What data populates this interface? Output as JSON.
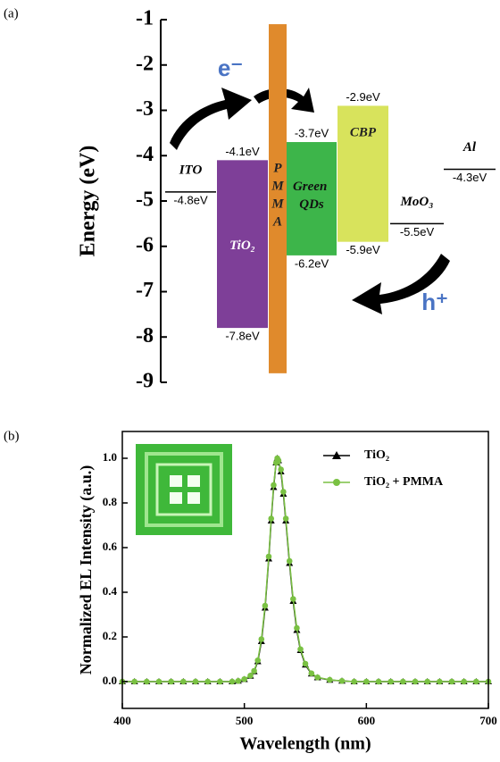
{
  "chart_data": [
    {
      "type": "energy-levels",
      "panel": "(a)",
      "y_label": "Energy (eV)",
      "ylim": [
        -9,
        -1
      ],
      "yticks": [
        -1,
        -2,
        -3,
        -4,
        -5,
        -6,
        -7,
        -8,
        -9
      ],
      "levels": [
        {
          "name": "ITO",
          "value": -4.8,
          "value_label": "-4.8eV"
        },
        {
          "name": "MoO₃",
          "value": -5.5,
          "value_label": "-5.5eV"
        },
        {
          "name": "Al",
          "value": -4.3,
          "value_label": "-4.3eV"
        }
      ],
      "bands": [
        {
          "name": "TiO₂",
          "top": -4.1,
          "bottom": -7.8,
          "top_label": "-4.1eV",
          "bottom_label": "-7.8eV",
          "color": "#7e3f98"
        },
        {
          "name": "PMMA",
          "top": -1.1,
          "bottom": -8.8,
          "color": "#e08a2c"
        },
        {
          "name": "Green QDs",
          "top": -3.7,
          "bottom": -6.2,
          "top_label": "-3.7eV",
          "bottom_label": "-6.2eV",
          "color": "#3db54a"
        },
        {
          "name": "CBP",
          "top": -2.9,
          "bottom": -5.9,
          "top_label": "-2.9eV",
          "bottom_label": "-5.9eV",
          "color": "#d8e35c"
        }
      ],
      "annotations": [
        "e⁻",
        "h⁺"
      ]
    },
    {
      "type": "line",
      "panel": "(b)",
      "x_label": "Wavelength (nm)",
      "y_label": "Normalized EL Intensity (a.u.)",
      "xlim": [
        400,
        700
      ],
      "xticks": [
        400,
        500,
        600,
        700
      ],
      "ylim": [
        -0.12,
        1.12
      ],
      "yticks": [
        {
          "value": 0,
          "label": "0.0"
        },
        0.2,
        0.4,
        0.6,
        0.8,
        {
          "value": 1,
          "label": "1.0"
        }
      ],
      "legend": "upper right",
      "x": [
        400,
        410,
        420,
        430,
        440,
        450,
        460,
        470,
        480,
        490,
        495,
        500,
        505,
        508,
        511,
        514,
        517,
        520,
        522,
        524,
        526,
        527,
        528,
        530,
        532,
        534,
        537,
        540,
        543,
        546,
        550,
        555,
        560,
        570,
        580,
        590,
        600,
        610,
        620,
        630,
        640,
        650,
        660,
        670,
        680,
        690,
        700
      ],
      "series": [
        {
          "name": "TiO₂",
          "color": "#000000",
          "marker": "triangle",
          "values": [
            0,
            0,
            0,
            0,
            0,
            0,
            0,
            0,
            0,
            0,
            0.003,
            0.01,
            0.025,
            0.045,
            0.09,
            0.18,
            0.33,
            0.55,
            0.72,
            0.87,
            0.98,
            1.0,
            0.99,
            0.94,
            0.84,
            0.72,
            0.53,
            0.36,
            0.23,
            0.14,
            0.075,
            0.035,
            0.018,
            0.007,
            0.003,
            0,
            0,
            0,
            0,
            0,
            0,
            0,
            0,
            0,
            0,
            0,
            0
          ]
        },
        {
          "name": "TiO₂ + PMMA",
          "color": "#7ac143",
          "marker": "circle",
          "values": [
            0,
            0,
            0,
            0,
            0,
            0,
            0,
            0,
            0,
            0,
            0.003,
            0.011,
            0.027,
            0.048,
            0.095,
            0.19,
            0.34,
            0.56,
            0.73,
            0.88,
            0.98,
            1.0,
            0.99,
            0.95,
            0.85,
            0.73,
            0.54,
            0.37,
            0.24,
            0.145,
            0.08,
            0.037,
            0.019,
            0.008,
            0.003,
            0,
            0,
            0,
            0,
            0,
            0,
            0,
            0,
            0,
            0,
            0,
            0
          ]
        }
      ]
    }
  ]
}
